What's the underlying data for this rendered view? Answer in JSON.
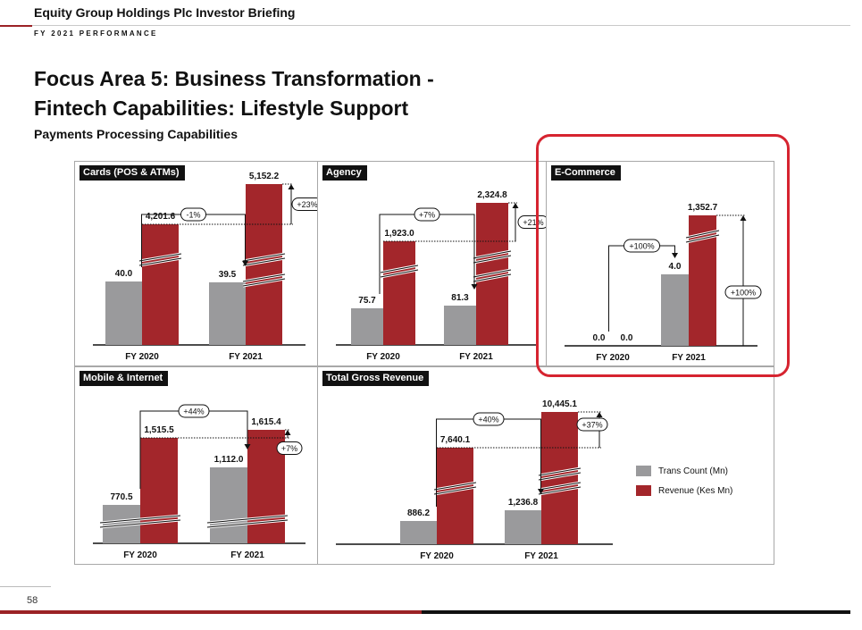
{
  "header": {
    "company": "Equity Group Holdings Plc Investor Briefing",
    "section": "FY 2021 PERFORMANCE"
  },
  "title_line1": "Focus Area 5: Business Transformation -",
  "title_line2": "Fintech Capabilities: Lifestyle Support",
  "subtitle": "Payments Processing Capabilities",
  "page_number": "58",
  "colors": {
    "trans_count": "#9a9a9c",
    "revenue": "#a3262b",
    "highlight": "#d62430"
  },
  "legend": {
    "trans_count": "Trans Count (Mn)",
    "revenue": "Revenue (Kes Mn)"
  },
  "chart_data": [
    {
      "type": "bar",
      "title": "Cards (POS & ATMs)",
      "categories": [
        "FY 2020",
        "FY 2021"
      ],
      "series": [
        {
          "name": "Trans Count (Mn)",
          "values": [
            40.0,
            39.5
          ],
          "labels": [
            "40.0",
            "39.5"
          ]
        },
        {
          "name": "Revenue (Kes Mn)",
          "values": [
            4201.6,
            5152.2
          ],
          "labels": [
            "4,201.6",
            "5,152.2"
          ]
        }
      ],
      "trans_change": "-1%",
      "revenue_change": "+23%"
    },
    {
      "type": "bar",
      "title": "Agency",
      "categories": [
        "FY 2020",
        "FY 2021"
      ],
      "series": [
        {
          "name": "Trans Count (Mn)",
          "values": [
            75.7,
            81.3
          ],
          "labels": [
            "75.7",
            "81.3"
          ]
        },
        {
          "name": "Revenue (Kes Mn)",
          "values": [
            1923.0,
            2324.8
          ],
          "labels": [
            "1,923.0",
            "2,324.8"
          ]
        }
      ],
      "trans_change": "+7%",
      "revenue_change": "+21%"
    },
    {
      "type": "bar",
      "title": "E-Commerce",
      "categories": [
        "FY 2020",
        "FY 2021"
      ],
      "series": [
        {
          "name": "Trans Count (Mn)",
          "values": [
            0.0,
            4.0
          ],
          "labels": [
            "0.0",
            "4.0"
          ]
        },
        {
          "name": "Revenue (Kes Mn)",
          "values": [
            0.0,
            1352.7
          ],
          "labels": [
            "0.0",
            "1,352.7"
          ]
        }
      ],
      "trans_change": "+100%",
      "revenue_change": "+100%"
    },
    {
      "type": "bar",
      "title": "Mobile & Internet",
      "categories": [
        "FY 2020",
        "FY 2021"
      ],
      "series": [
        {
          "name": "Trans Count (Mn)",
          "values": [
            770.5,
            1112.0
          ],
          "labels": [
            "770.5",
            "1,112.0"
          ]
        },
        {
          "name": "Revenue (Kes Mn)",
          "values": [
            1515.5,
            1615.4
          ],
          "labels": [
            "1,515.5",
            "1,615.4"
          ]
        }
      ],
      "trans_change": "+44%",
      "revenue_change": "+7%"
    },
    {
      "type": "bar",
      "title": "Total Gross Revenue",
      "categories": [
        "FY 2020",
        "FY 2021"
      ],
      "series": [
        {
          "name": "Trans Count (Mn)",
          "values": [
            886.2,
            1236.8
          ],
          "labels": [
            "886.2",
            "1,236.8"
          ]
        },
        {
          "name": "Revenue (Kes Mn)",
          "values": [
            7640.1,
            10445.1
          ],
          "labels": [
            "7,640.1",
            "10,445.1"
          ]
        }
      ],
      "trans_change": "+40%",
      "revenue_change": "+37%"
    }
  ]
}
